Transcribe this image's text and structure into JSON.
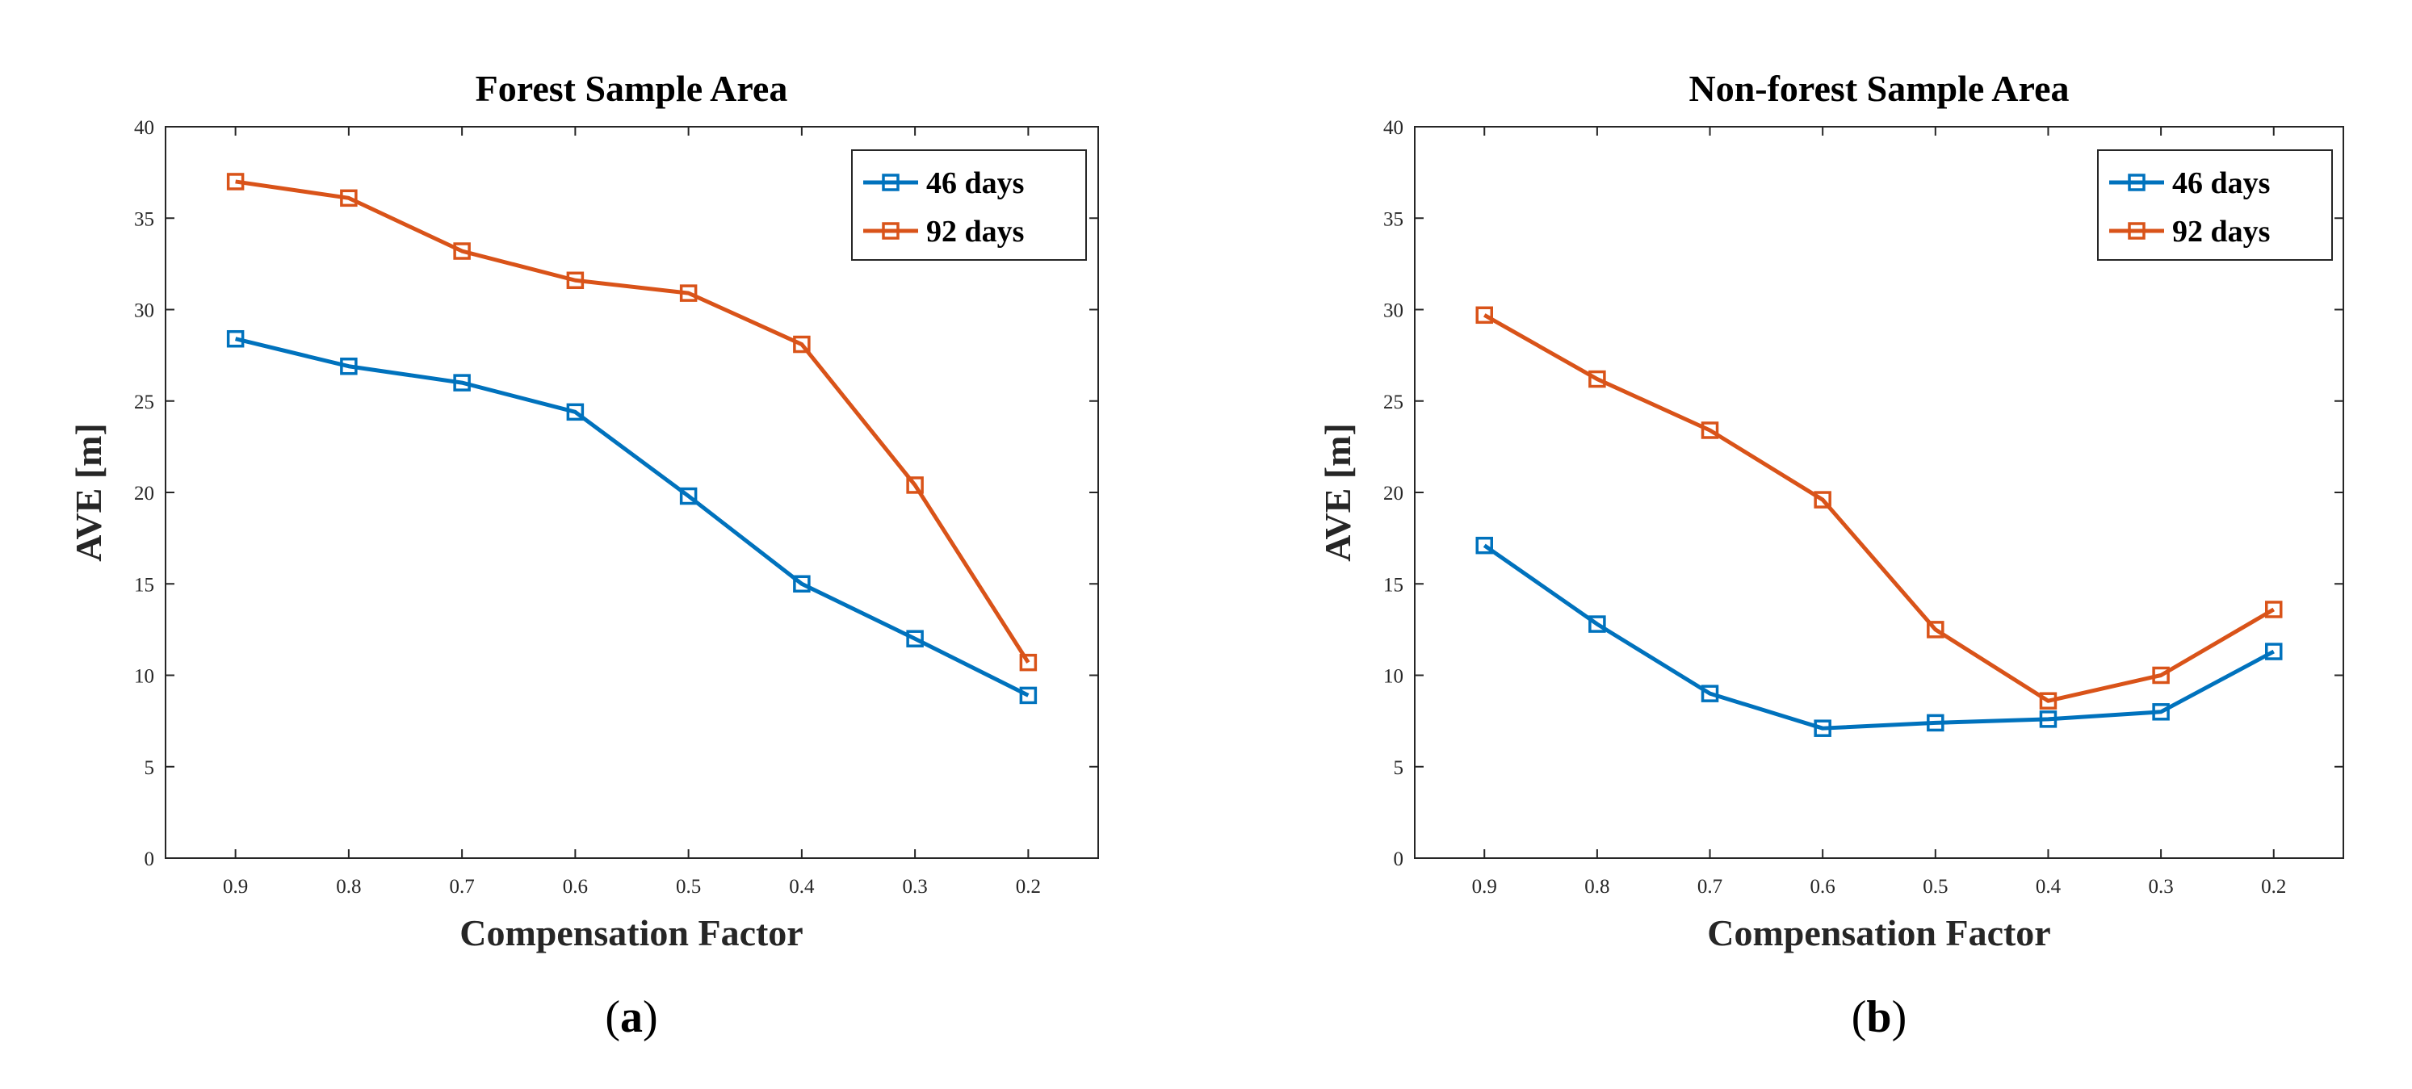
{
  "colors": {
    "series_46": "#0072BD",
    "series_92": "#D95319",
    "axis": "#262626"
  },
  "chart_data": [
    {
      "type": "line",
      "panel": "(a)",
      "panel_open": "(",
      "panel_letter": "a",
      "panel_close": ")",
      "title": "Forest Sample Area",
      "xlabel": "Compensation Factor",
      "ylabel": "AVE [m]",
      "categories": [
        "0.9",
        "0.8",
        "0.7",
        "0.6",
        "0.5",
        "0.4",
        "0.3",
        "0.2"
      ],
      "ylim": [
        0,
        40
      ],
      "yticks": [
        "0",
        "5",
        "10",
        "15",
        "20",
        "25",
        "30",
        "35",
        "40"
      ],
      "legend_position": "top-right",
      "series": [
        {
          "name": "46 days",
          "values": [
            28.4,
            26.9,
            26.0,
            24.4,
            19.8,
            15.0,
            12.0,
            8.9
          ]
        },
        {
          "name": "92 days",
          "values": [
            37.0,
            36.1,
            33.2,
            31.6,
            30.9,
            28.1,
            20.4,
            10.7
          ]
        }
      ]
    },
    {
      "type": "line",
      "panel": "(b)",
      "panel_open": "(",
      "panel_letter": "b",
      "panel_close": ")",
      "title": "Non-forest Sample Area",
      "xlabel": "Compensation Factor",
      "ylabel": "AVE [m]",
      "categories": [
        "0.9",
        "0.8",
        "0.7",
        "0.6",
        "0.5",
        "0.4",
        "0.3",
        "0.2"
      ],
      "ylim": [
        0,
        40
      ],
      "yticks": [
        "0",
        "5",
        "10",
        "15",
        "20",
        "25",
        "30",
        "35",
        "40"
      ],
      "legend_position": "top-right",
      "series": [
        {
          "name": "46 days",
          "values": [
            17.1,
            12.8,
            9.0,
            7.1,
            7.4,
            7.6,
            8.0,
            11.3
          ]
        },
        {
          "name": "92 days",
          "values": [
            29.7,
            26.2,
            23.4,
            19.6,
            12.5,
            8.6,
            10.0,
            13.6
          ]
        }
      ]
    }
  ]
}
